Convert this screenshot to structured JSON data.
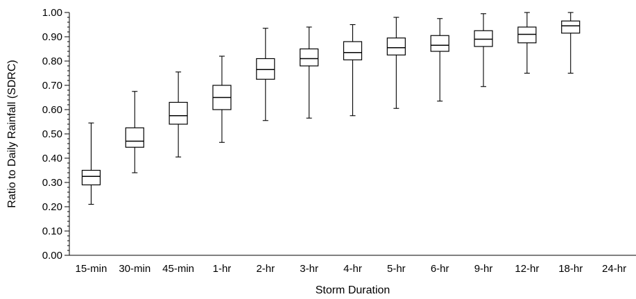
{
  "chart_data": {
    "type": "box",
    "title": "",
    "xlabel": "Storm Duration",
    "ylabel": "Ratio to Daily Rainfall (SDRC)",
    "ylim": [
      0,
      1.0
    ],
    "y_ticks": [
      "0.00",
      "0.10",
      "0.20",
      "0.30",
      "0.40",
      "0.50",
      "0.60",
      "0.70",
      "0.80",
      "0.90",
      "1.00"
    ],
    "y_tick_values": [
      0,
      0.1,
      0.2,
      0.3,
      0.4,
      0.5,
      0.6,
      0.7,
      0.8,
      0.9,
      1.0
    ],
    "grid": false,
    "categories": [
      "15-min",
      "30-min",
      "45-min",
      "1-hr",
      "2-hr",
      "3-hr",
      "4-hr",
      "5-hr",
      "6-hr",
      "9-hr",
      "12-hr",
      "18-hr",
      "24-hr"
    ],
    "boxes": [
      {
        "category": "15-min",
        "min": 0.21,
        "q1": 0.29,
        "median": 0.325,
        "q3": 0.35,
        "max": 0.545
      },
      {
        "category": "30-min",
        "min": 0.34,
        "q1": 0.445,
        "median": 0.47,
        "q3": 0.525,
        "max": 0.675
      },
      {
        "category": "45-min",
        "min": 0.405,
        "q1": 0.54,
        "median": 0.575,
        "q3": 0.63,
        "max": 0.755
      },
      {
        "category": "1-hr",
        "min": 0.465,
        "q1": 0.6,
        "median": 0.65,
        "q3": 0.7,
        "max": 0.82
      },
      {
        "category": "2-hr",
        "min": 0.555,
        "q1": 0.725,
        "median": 0.765,
        "q3": 0.81,
        "max": 0.935
      },
      {
        "category": "3-hr",
        "min": 0.565,
        "q1": 0.78,
        "median": 0.81,
        "q3": 0.85,
        "max": 0.94
      },
      {
        "category": "4-hr",
        "min": 0.575,
        "q1": 0.805,
        "median": 0.835,
        "q3": 0.88,
        "max": 0.95
      },
      {
        "category": "5-hr",
        "min": 0.605,
        "q1": 0.825,
        "median": 0.855,
        "q3": 0.895,
        "max": 0.98
      },
      {
        "category": "6-hr",
        "min": 0.635,
        "q1": 0.84,
        "median": 0.865,
        "q3": 0.905,
        "max": 0.975
      },
      {
        "category": "9-hr",
        "min": 0.695,
        "q1": 0.86,
        "median": 0.89,
        "q3": 0.925,
        "max": 0.995
      },
      {
        "category": "12-hr",
        "min": 0.75,
        "q1": 0.875,
        "median": 0.91,
        "q3": 0.94,
        "max": 1.0
      },
      {
        "category": "18-hr",
        "min": 0.75,
        "q1": 0.915,
        "median": 0.945,
        "q3": 0.965,
        "max": 1.0
      }
    ]
  }
}
